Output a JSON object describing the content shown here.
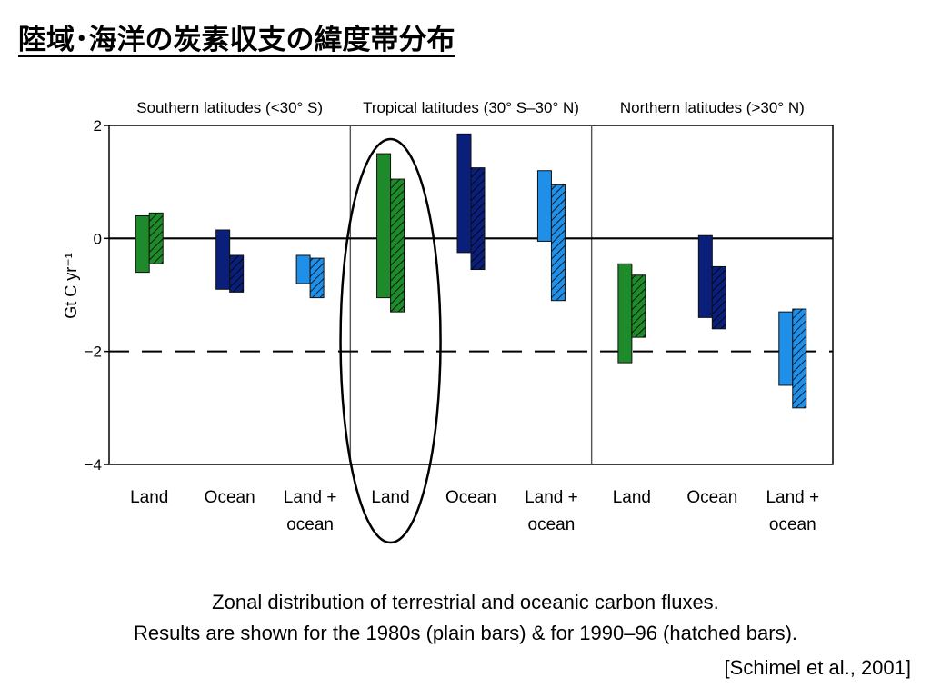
{
  "title": "陸域･海洋の炭素収支の緯度帯分布",
  "caption_line1": "Zonal distribution of terrestrial and oceanic carbon fluxes.",
  "caption_line2": "Results are shown for the 1980s (plain bars) & for 1990–96 (hatched bars).",
  "citation": "[Schimel et al., 2001]",
  "chart_data": {
    "type": "bar",
    "ylabel": "Gt C yr⁻¹",
    "ylim": [
      -4,
      2
    ],
    "yticks": [
      2,
      0,
      -2,
      -4
    ],
    "reference_line": -2,
    "grid": false,
    "highlight": "Tropical latitudes (30° S–30° N) – Land (circled)",
    "colors": {
      "Land": "#1f8a2a",
      "Ocean": "#0a1f7a",
      "Land + ocean": "#1f8fe8",
      "outline": "#000000"
    },
    "groups": [
      {
        "name": "Southern latitudes (<30° S)",
        "categories": [
          {
            "label": "Land",
            "kind": "Land",
            "plain": [
              -0.6,
              0.4
            ],
            "hatched": [
              -0.45,
              0.45
            ]
          },
          {
            "label": "Ocean",
            "kind": "Ocean",
            "plain": [
              -0.9,
              0.15
            ],
            "hatched": [
              -0.95,
              -0.3
            ]
          },
          {
            "label": "Land + ocean",
            "kind": "Land + ocean",
            "plain": [
              -0.8,
              -0.3
            ],
            "hatched": [
              -1.05,
              -0.35
            ]
          }
        ]
      },
      {
        "name": "Tropical latitudes (30° S–30° N)",
        "categories": [
          {
            "label": "Land",
            "kind": "Land",
            "plain": [
              -1.05,
              1.5
            ],
            "hatched": [
              -1.3,
              1.05
            ]
          },
          {
            "label": "Ocean",
            "kind": "Ocean",
            "plain": [
              -0.25,
              1.85
            ],
            "hatched": [
              -0.55,
              1.25
            ]
          },
          {
            "label": "Land + ocean",
            "kind": "Land + ocean",
            "plain": [
              -0.05,
              1.2
            ],
            "hatched": [
              -1.1,
              0.95
            ]
          }
        ]
      },
      {
        "name": "Northern latitudes (>30° N)",
        "categories": [
          {
            "label": "Land",
            "kind": "Land",
            "plain": [
              -2.2,
              -0.45
            ],
            "hatched": [
              -1.75,
              -0.65
            ]
          },
          {
            "label": "Ocean",
            "kind": "Ocean",
            "plain": [
              -1.4,
              0.05
            ],
            "hatched": [
              -1.6,
              -0.5
            ]
          },
          {
            "label": "Land + ocean",
            "kind": "Land + ocean",
            "plain": [
              -2.6,
              -1.3
            ],
            "hatched": [
              -3.0,
              -1.25
            ]
          }
        ]
      }
    ]
  }
}
